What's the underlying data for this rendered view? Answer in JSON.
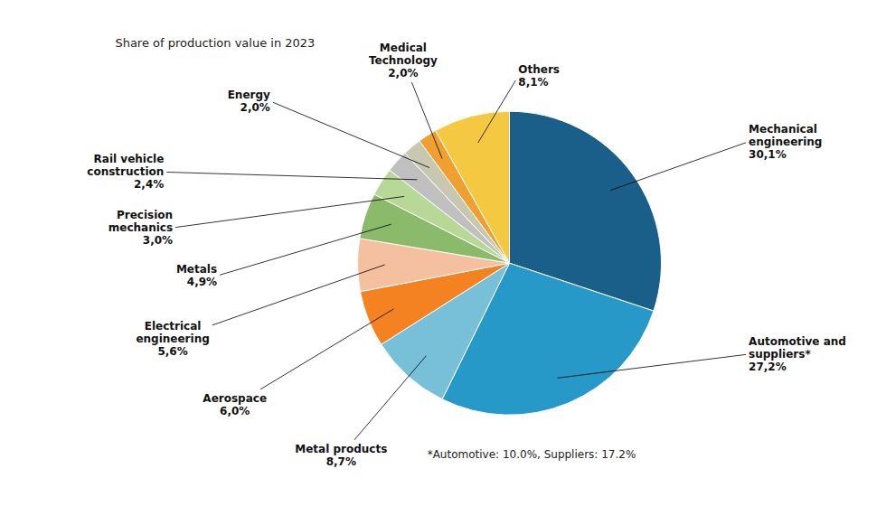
{
  "chart_data": {
    "type": "pie",
    "title": "Share of production value in 2023",
    "categories": [
      "Mechanical\nengineering",
      "Automotive and\nsuppliers*",
      "Metal products",
      "Aerospace",
      "Electrical\nengineering",
      "Metals",
      "Precision\nmechanics",
      "Rail vehicle\nconstruction",
      "Energy",
      "Medical\nTechnology",
      "Others"
    ],
    "values": [
      30.1,
      27.2,
      8.7,
      6.0,
      5.6,
      4.9,
      3.0,
      2.4,
      2.0,
      2.0,
      8.1
    ],
    "value_labels": [
      "30,1%",
      "27,2%",
      "8,7%",
      "6,0%",
      "5,6%",
      "4,9%",
      "3,0%",
      "2,4%",
      "2,0%",
      "2,0%",
      "8,1%"
    ],
    "colors": [
      "#1a5e8a",
      "#2699c8",
      "#78c0d8",
      "#f58220",
      "#f5c0a0",
      "#8aba6a",
      "#b8d898",
      "#c0c0c0",
      "#c8c8b0",
      "#f0a030",
      "#f5c842"
    ],
    "data_labels": true,
    "annotations": [
      "*Automotive: 10.0%, Suppliers: 17.2%"
    ]
  }
}
